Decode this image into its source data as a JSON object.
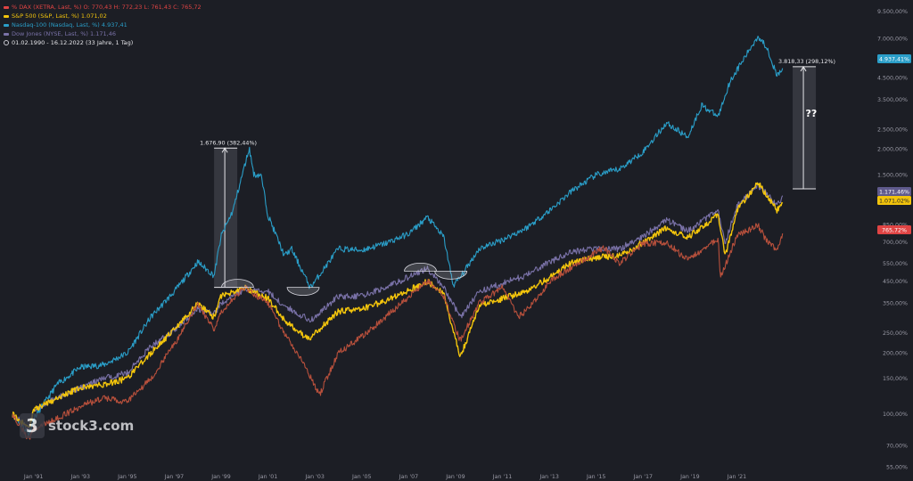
{
  "legend": [
    {
      "id": "dax",
      "prefix": "%",
      "text": "DAX (XETRA, Last, %)  O: 770,43  H: 772,23  L: 761,43  C: 765,72",
      "color": "#e04444",
      "text_color": "#e04444"
    },
    {
      "id": "sp500",
      "prefix": "",
      "text": "S&P 500 (S&P, Last, %)  1.071,02",
      "color": "#f2c40c",
      "text_color": "#f2c40c"
    },
    {
      "id": "nasdaq",
      "prefix": "",
      "text": "Nasdaq-100 (Nasdaq, Last, %)  4.937,41",
      "color": "#2a9ec8",
      "text_color": "#2a9ec8"
    },
    {
      "id": "dow",
      "prefix": "",
      "text": "Dow Jones (NYSE, Last, %)  1.171,46",
      "color": "#7a72a8",
      "text_color": "#7a72a8"
    }
  ],
  "date_range": "01.02.1990 - 16.12.2022   (33 Jahre, 1 Tag)",
  "logo": {
    "box": "3",
    "text": "stock3.com"
  },
  "chart_data": {
    "type": "line",
    "x_axis": {
      "label": "",
      "ticks": [
        "Jan '91",
        "Jan '93",
        "Jan '95",
        "Jan '97",
        "Jan '99",
        "Jan '01",
        "Jan '03",
        "Jan '05",
        "Jan '07",
        "Jan '09",
        "Jan '11",
        "Jan '13",
        "Jan '15",
        "Jan '17",
        "Jan '19",
        "Jan '21"
      ],
      "range": [
        1990.1,
        2022.96
      ]
    },
    "y_axis": {
      "scale": "log",
      "label": "",
      "ticks": [
        "9.500,00%",
        "7.000,00%",
        "5.500,00%",
        "4.500,00%",
        "3.500,00%",
        "2.500,00%",
        "2.000,00%",
        "1.500,00%",
        "1.150,00%",
        "850,00%",
        "700,00%",
        "550,00%",
        "450,00%",
        "350,00%",
        "250,00%",
        "200,00%",
        "150,00%",
        "100,00%",
        "70,00%",
        "55,00%"
      ],
      "tick_values": [
        9500,
        7000,
        5500,
        4500,
        3500,
        2500,
        2000,
        1500,
        1150,
        850,
        700,
        550,
        450,
        350,
        250,
        200,
        150,
        100,
        70,
        55
      ],
      "range": [
        52,
        10000
      ]
    },
    "series": [
      {
        "name": "Nasdaq-100",
        "color": "#2a9ec8",
        "last_label": "4.937,41%",
        "x": [
          1990.1,
          1990.8,
          1991.0,
          1992.0,
          1993.0,
          1994.0,
          1995.0,
          1996.0,
          1997.0,
          1998.0,
          1998.7,
          1999.0,
          1999.5,
          2000.2,
          2000.4,
          2000.7,
          2001.0,
          2001.7,
          2002.0,
          2002.8,
          2003.0,
          2004.0,
          2005.0,
          2006.0,
          2007.0,
          2007.8,
          2008.5,
          2008.9,
          2009.2,
          2010.0,
          2011.0,
          2012.0,
          2013.0,
          2014.0,
          2015.0,
          2016.0,
          2017.0,
          2018.0,
          2018.9,
          2019.5,
          2020.2,
          2020.7,
          2021.0,
          2021.9,
          2022.3,
          2022.7,
          2022.96
        ],
        "y": [
          100,
          80,
          95,
          140,
          170,
          175,
          200,
          300,
          400,
          560,
          480,
          750,
          1000,
          2030,
          1500,
          1500,
          950,
          600,
          650,
          420,
          450,
          650,
          640,
          690,
          770,
          930,
          740,
          430,
          470,
          650,
          720,
          820,
          1000,
          1260,
          1500,
          1600,
          1950,
          2700,
          2300,
          3300,
          2900,
          4300,
          4900,
          7200,
          6300,
          4600,
          4937
        ]
      },
      {
        "name": "Dow Jones",
        "color": "#7a72a8",
        "last_label": "1.171,46%",
        "x": [
          1990.1,
          1990.8,
          1991.0,
          1992.0,
          1993.0,
          1994.0,
          1995.0,
          1996.0,
          1997.0,
          1998.0,
          1998.7,
          1999.0,
          2000.0,
          2001.0,
          2001.7,
          2002.8,
          2003.0,
          2004.0,
          2005.0,
          2006.0,
          2007.8,
          2008.5,
          2009.2,
          2010.0,
          2011.0,
          2012.0,
          2013.0,
          2014.0,
          2015.0,
          2016.0,
          2017.0,
          2018.0,
          2018.9,
          2020.2,
          2020.5,
          2021.0,
          2021.9,
          2022.3,
          2022.7,
          2022.96
        ],
        "y": [
          100,
          85,
          105,
          120,
          135,
          150,
          160,
          215,
          260,
          330,
          310,
          350,
          410,
          400,
          340,
          290,
          300,
          380,
          380,
          420,
          520,
          420,
          300,
          400,
          440,
          480,
          560,
          630,
          650,
          650,
          750,
          900,
          800,
          1000,
          700,
          1050,
          1330,
          1200,
          1050,
          1171
        ]
      },
      {
        "name": "S&P 500",
        "color": "#f2c40c",
        "last_label": "1.071,02%",
        "x": [
          1990.1,
          1990.8,
          1991.0,
          1992.0,
          1993.0,
          1994.0,
          1995.0,
          1996.0,
          1997.0,
          1998.0,
          1998.7,
          1999.0,
          2000.0,
          2001.0,
          2001.7,
          2002.8,
          2003.0,
          2004.0,
          2005.0,
          2006.0,
          2007.8,
          2008.5,
          2009.2,
          2010.0,
          2011.0,
          2012.0,
          2013.0,
          2014.0,
          2015.0,
          2016.0,
          2017.0,
          2018.0,
          2018.9,
          2020.2,
          2020.5,
          2021.0,
          2021.9,
          2022.3,
          2022.7,
          2022.96
        ],
        "y": [
          100,
          85,
          105,
          120,
          135,
          140,
          150,
          200,
          260,
          350,
          300,
          380,
          420,
          370,
          290,
          230,
          250,
          320,
          330,
          360,
          450,
          390,
          190,
          340,
          370,
          400,
          470,
          560,
          590,
          600,
          700,
          820,
          740,
          950,
          600,
          1000,
          1380,
          1170,
          1000,
          1071
        ]
      },
      {
        "name": "DAX",
        "color": "#b8503c",
        "last_label": "765,72%",
        "x": [
          1990.1,
          1990.8,
          1991.0,
          1992.0,
          1993.0,
          1994.0,
          1995.0,
          1996.0,
          1997.0,
          1998.0,
          1998.7,
          1999.0,
          2000.0,
          2001.0,
          2001.7,
          2002.5,
          2003.2,
          2004.0,
          2005.0,
          2006.0,
          2007.8,
          2008.5,
          2009.2,
          2010.0,
          2011.0,
          2011.7,
          2012.5,
          2013.0,
          2014.0,
          2015.3,
          2016.0,
          2017.0,
          2018.0,
          2018.9,
          2020.2,
          2020.3,
          2021.0,
          2021.9,
          2022.3,
          2022.7,
          2022.96
        ],
        "y": [
          100,
          75,
          85,
          95,
          110,
          120,
          115,
          150,
          220,
          350,
          260,
          320,
          420,
          350,
          250,
          180,
          125,
          200,
          240,
          300,
          450,
          380,
          230,
          350,
          420,
          300,
          370,
          450,
          530,
          660,
          550,
          690,
          700,
          570,
          730,
          470,
          750,
          850,
          700,
          650,
          766
        ]
      }
    ],
    "last_value_labels": [
      "4.937,41%",
      "1.171,46%",
      "1.071,02%",
      "765,72%"
    ],
    "annotations": [
      {
        "text": "1.676,90 (382,44%)",
        "x_start": 1998.7,
        "x_end": 1999.1,
        "y_from": 420,
        "y_to": 2030
      },
      {
        "text": "3.818,33 (298,12%)",
        "x_start": 2023.0,
        "x_end": 2023.3,
        "y_from": 1280,
        "y_to": 5095
      },
      {
        "text": "??",
        "x": 2023.55,
        "y": 2900
      }
    ],
    "arcs": [
      {
        "x": 1999.7,
        "y": 420,
        "dir": "top"
      },
      {
        "x": 2002.5,
        "y": 420,
        "dir": "bottom"
      },
      {
        "x": 2007.5,
        "y": 505,
        "dir": "top"
      },
      {
        "x": 2008.8,
        "y": 505,
        "dir": "bottom"
      }
    ],
    "grid": false,
    "legend_position": "top-left"
  },
  "colors": {
    "background": "#1c1e25",
    "axis_text": "#9a9aa6"
  }
}
